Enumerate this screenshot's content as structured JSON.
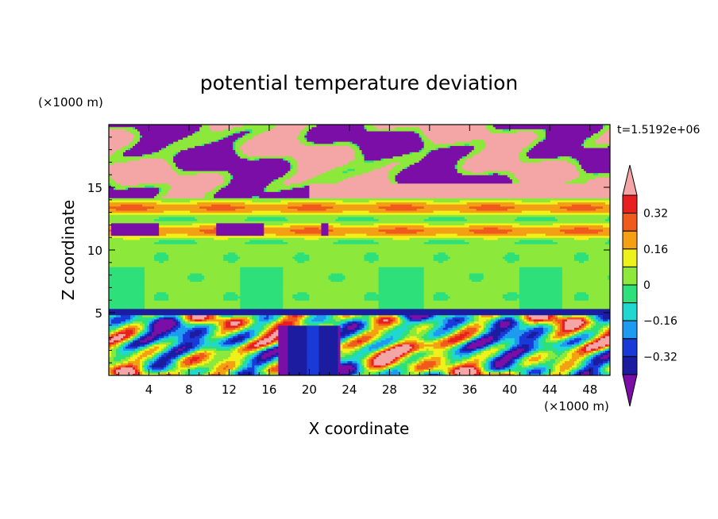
{
  "chart_data": {
    "type": "heatmap",
    "title": "potential temperature deviation",
    "xlabel": "X coordinate",
    "ylabel": "Z coordinate",
    "x_unit": "(×1000 m)",
    "y_unit": "(×1000 m)",
    "time_label": "t=1.5192e+06",
    "xlim": [
      0,
      50
    ],
    "ylim": [
      0,
      20
    ],
    "xticks": [
      4,
      8,
      12,
      16,
      20,
      24,
      28,
      32,
      36,
      40,
      44,
      48
    ],
    "yticks": [
      5,
      10,
      15
    ],
    "colorbar": {
      "levels": [
        -0.4,
        -0.32,
        -0.24,
        -0.16,
        -0.08,
        0,
        0.08,
        0.16,
        0.24,
        0.32,
        0.4
      ],
      "labels": [
        "0.32",
        "0.16",
        "0",
        "−0.16",
        "−0.32"
      ],
      "label_values": [
        0.32,
        0.16,
        0,
        -0.16,
        -0.32
      ],
      "colors_low_to_high": [
        "#7a0ea6",
        "#1c1ca0",
        "#1a3ad8",
        "#1e9bf0",
        "#21d8d0",
        "#2ee07a",
        "#8ce83a",
        "#eef21a",
        "#f3a014",
        "#f05a1c",
        "#e81f1f",
        "#f4a6a6"
      ],
      "extend": "both"
    },
    "bands": [
      {
        "z": [
          0,
          5.3
        ],
        "description_colors": [
          "#7a0ea6",
          "#1c1ca0",
          "#f4a6a6",
          "#f3a014",
          "#21d8d0",
          "#e81f1f"
        ]
      },
      {
        "z": [
          5.3,
          10.5
        ],
        "description_colors": [
          "#8ce83a",
          "#2ee07a",
          "#21d8d0"
        ]
      },
      {
        "z": [
          10.5,
          14.2
        ],
        "description_colors": [
          "#eef21a",
          "#f3a014",
          "#8ce83a"
        ]
      },
      {
        "z": [
          14.2,
          20
        ],
        "description_colors": [
          "#7a0ea6",
          "#f4a6a6",
          "#2ee07a"
        ]
      }
    ]
  }
}
